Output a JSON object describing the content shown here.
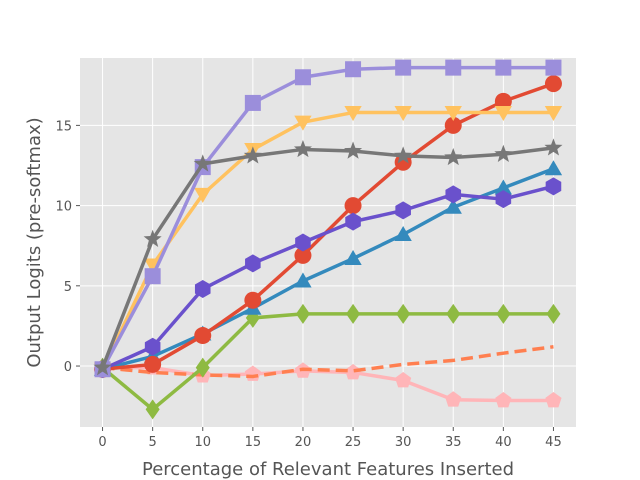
{
  "chart_data": {
    "type": "line",
    "title": "",
    "xlabel": "Percentage of Relevant Features Inserted",
    "ylabel": "Output Logits (pre-softmax)",
    "x": [
      0,
      5,
      10,
      15,
      20,
      25,
      30,
      35,
      40,
      45
    ],
    "xlim": [
      -2.25,
      47.25
    ],
    "ylim": [
      -3.8,
      19.2
    ],
    "xticks": [
      0,
      5,
      10,
      15,
      20,
      25,
      30,
      35,
      40,
      45
    ],
    "yticks": [
      0,
      5,
      10,
      15
    ],
    "grid": true,
    "background": "#E5E5E5",
    "series": [
      {
        "color": "#FFB5B8",
        "marker": "pentagon",
        "linestyle": "solid",
        "values": [
          -0.1,
          -0.1,
          -0.6,
          -0.5,
          -0.3,
          -0.4,
          -0.9,
          -2.1,
          -2.15,
          -2.15
        ]
      },
      {
        "color": "#FF7F50",
        "marker": "none",
        "linestyle": "dashed",
        "values": [
          -0.1,
          -0.4,
          -0.55,
          -0.65,
          -0.2,
          -0.3,
          0.1,
          0.35,
          0.8,
          1.2
        ]
      },
      {
        "color": "#8EBA42",
        "marker": "diamond",
        "linestyle": "solid",
        "values": [
          -0.1,
          -2.7,
          -0.1,
          3.0,
          3.25,
          3.25,
          3.25,
          3.25,
          3.25,
          3.25
        ]
      },
      {
        "color": "#348ABD",
        "marker": "triangle-up",
        "linestyle": "solid",
        "values": [
          -0.2,
          0.6,
          2.0,
          3.6,
          5.3,
          6.7,
          8.2,
          9.9,
          11.1,
          12.3
        ]
      },
      {
        "color": "#E24A33",
        "marker": "circle",
        "linestyle": "solid",
        "values": [
          -0.2,
          0.1,
          1.9,
          4.1,
          6.9,
          10.0,
          12.7,
          15.0,
          16.5,
          17.6
        ]
      },
      {
        "color": "#6A51CC",
        "marker": "hexagon",
        "linestyle": "solid",
        "values": [
          -0.2,
          1.2,
          4.8,
          6.4,
          7.7,
          9.0,
          9.7,
          10.7,
          10.4,
          11.2
        ]
      },
      {
        "color": "#FFC25F",
        "marker": "triangle-down",
        "linestyle": "solid",
        "values": [
          -0.2,
          6.3,
          10.7,
          13.5,
          15.2,
          15.8,
          15.8,
          15.8,
          15.8,
          15.8
        ]
      },
      {
        "color": "#9B8EDB",
        "marker": "square",
        "linestyle": "solid",
        "values": [
          -0.2,
          5.6,
          12.4,
          16.4,
          18.0,
          18.5,
          18.6,
          18.6,
          18.6,
          18.6
        ]
      },
      {
        "color": "#777777",
        "marker": "star",
        "linestyle": "solid",
        "values": [
          -0.1,
          7.9,
          12.6,
          13.1,
          13.5,
          13.4,
          13.1,
          13.0,
          13.2,
          13.6
        ]
      }
    ]
  }
}
